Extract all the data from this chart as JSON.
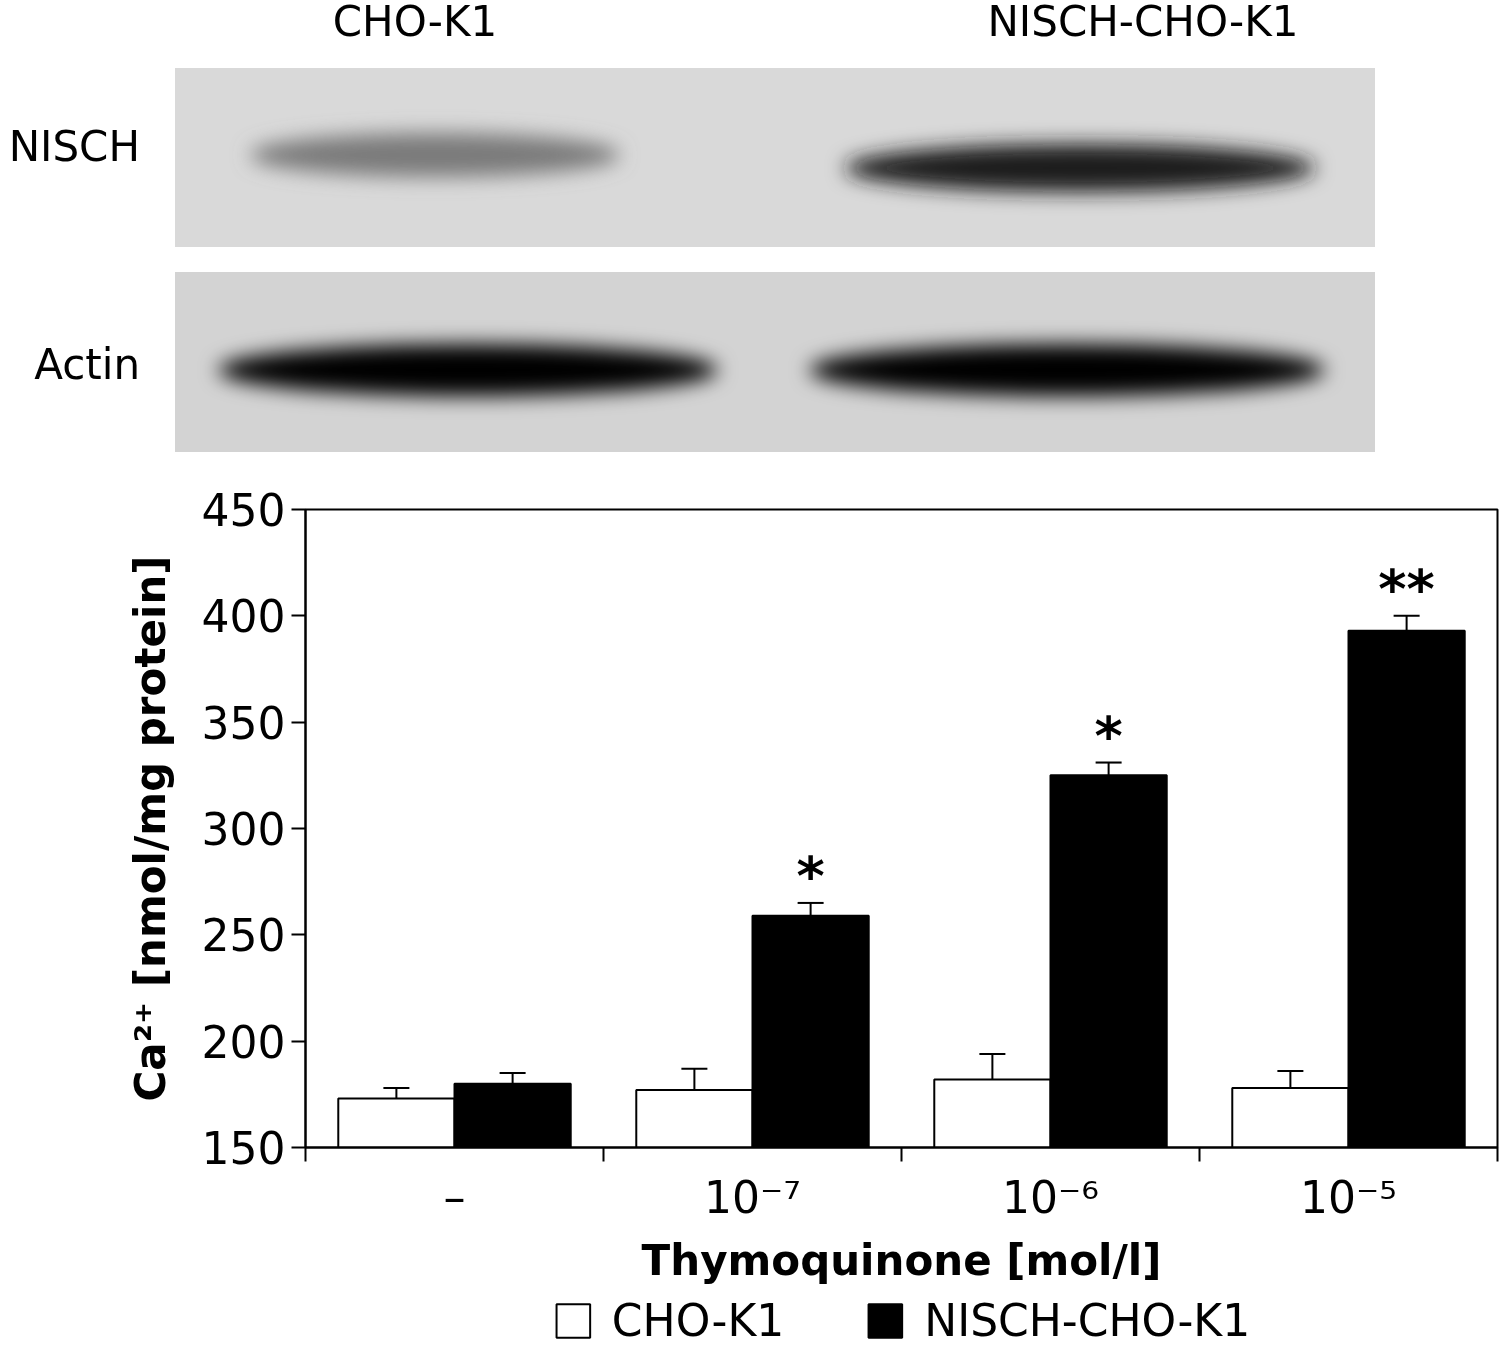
{
  "chart_data": {
    "type": "bar",
    "categories": [
      "–",
      "10⁻⁷",
      "10⁻⁶",
      "10⁻⁵"
    ],
    "xlabel": "Thymoquinone [mol/l]",
    "ylabel": "Ca²⁺ [nmol/mg protein]",
    "ylim": [
      150,
      450
    ],
    "yticks": [
      150,
      200,
      250,
      300,
      350,
      400,
      450
    ],
    "grid": false,
    "legend": "bottom",
    "series": [
      {
        "name": "CHO-K1",
        "color": "#ffffff",
        "values": [
          173,
          177,
          182,
          178
        ],
        "errors": [
          [
            173,
            178
          ],
          [
            177,
            187
          ],
          [
            182,
            194
          ],
          [
            178,
            186
          ]
        ]
      },
      {
        "name": "NISCH-CHO-K1",
        "color": "#000000",
        "values": [
          180,
          259,
          325,
          393
        ],
        "errors": [
          [
            180,
            185
          ],
          [
            259,
            265
          ],
          [
            325,
            331
          ],
          [
            393,
            400
          ]
        ]
      }
    ],
    "annotations": [
      "CHO-K1",
      "NISCH-CHO-K1",
      "NISCH",
      "Actin",
      "*",
      "*",
      "**"
    ]
  }
}
